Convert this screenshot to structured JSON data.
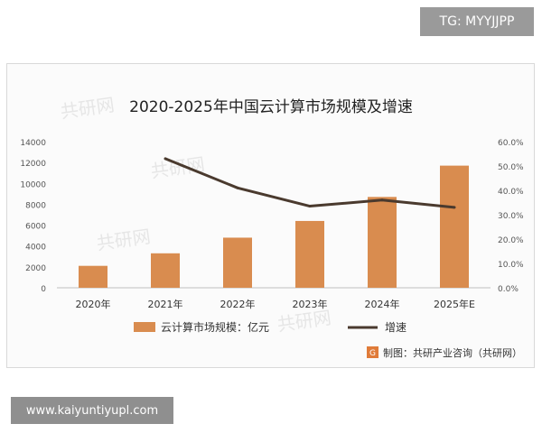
{
  "top_badge": {
    "text": "TG: MYYJJPP"
  },
  "bottom_badge": {
    "text": "www.kaiyuntiyupl.com"
  },
  "source": {
    "text": "制图：共研产业咨询（共研网）",
    "icon": "logo-badge-icon"
  },
  "watermark": {
    "text": "共研网"
  },
  "colors": {
    "bar": "#d98c4f",
    "line": "#4a3a2e"
  },
  "chart_data": {
    "type": "bar",
    "title": "2020-2025年中国云计算市场规模及增速",
    "categories": [
      "2020年",
      "2021年",
      "2022年",
      "2023年",
      "2024年",
      "2025年E"
    ],
    "series": [
      {
        "name": "云计算市场规模：亿元",
        "type": "bar",
        "axis": "left",
        "values": [
          2100,
          3300,
          4800,
          6400,
          8700,
          11700
        ]
      },
      {
        "name": "增速",
        "type": "line",
        "axis": "right",
        "values": [
          null,
          53.0,
          41.0,
          33.5,
          36.0,
          33.0
        ]
      }
    ],
    "y_left": {
      "ticks": [
        "0",
        "2000",
        "4000",
        "6000",
        "8000",
        "10000",
        "12000",
        "14000"
      ],
      "min": 0,
      "max": 14000
    },
    "y_right": {
      "ticks": [
        "0.0%",
        "10.0%",
        "20.0%",
        "30.0%",
        "40.0%",
        "50.0%",
        "60.0%"
      ],
      "min": 0,
      "max": 60
    },
    "grid": false,
    "legend_position": "bottom"
  }
}
